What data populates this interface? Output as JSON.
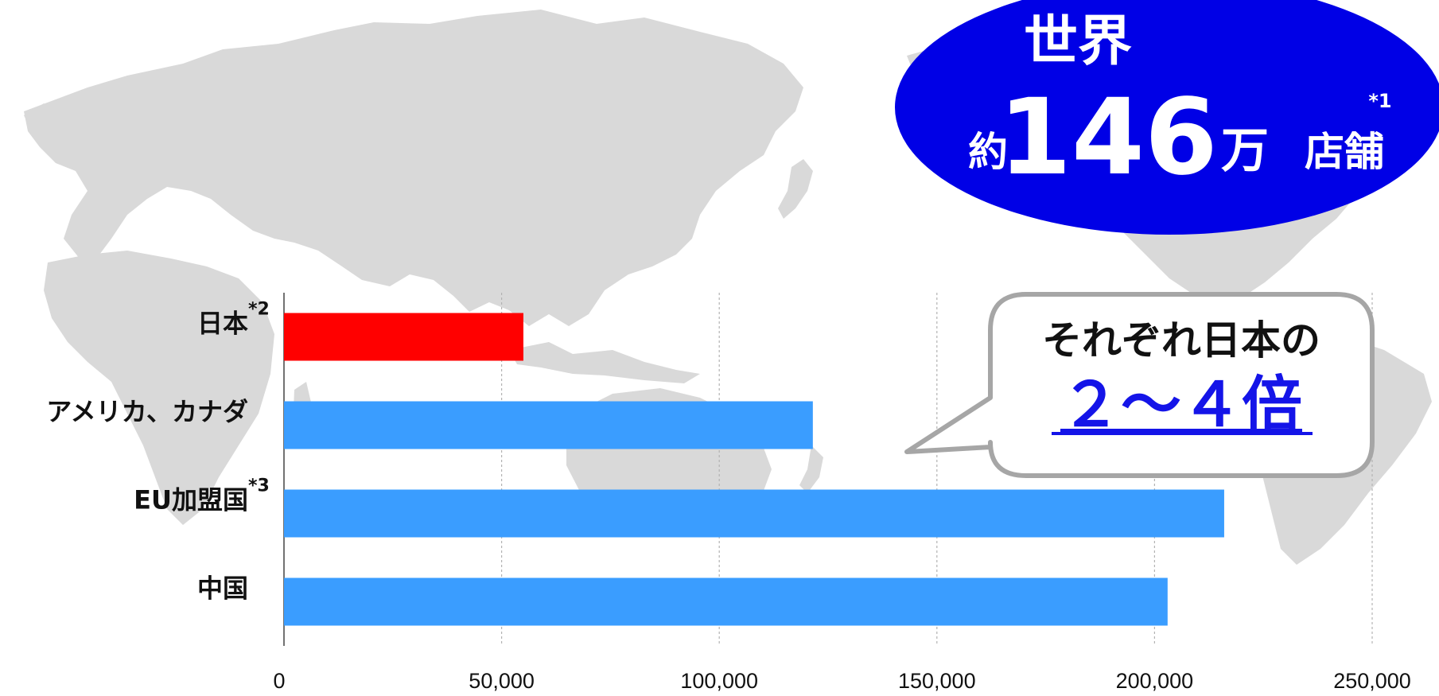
{
  "badge": {
    "line1": "世界",
    "prefix": "約",
    "number": "146",
    "unit": "万",
    "suffix": "店舗",
    "footnote": "*1",
    "bg_color": "#0000E6"
  },
  "callout": {
    "line1": "それぞれ日本の",
    "line2": "２～４倍",
    "highlight_color": "#1414E8",
    "border_color": "#A6A6A6"
  },
  "colors": {
    "highlight_bar": "#FF0000",
    "default_bar": "#3A9DFF",
    "map_land": "#D9D9D9",
    "gridline": "#B3B3B3"
  },
  "chart_data": {
    "type": "bar",
    "orientation": "horizontal",
    "categories": [
      {
        "label": "日本",
        "note": "*2"
      },
      {
        "label": "アメリカ、カナダ",
        "note": ""
      },
      {
        "label": "EU加盟国",
        "note": "*3"
      },
      {
        "label": "中国",
        "note": ""
      }
    ],
    "values": [
      55000,
      121500,
      216000,
      203000
    ],
    "highlight_index": 0,
    "xlim": [
      0,
      250000
    ],
    "xticks": [
      0,
      50000,
      100000,
      150000,
      200000,
      250000
    ],
    "xtick_labels": [
      "0",
      "50,000",
      "100,000",
      "150,000",
      "200,000",
      "250,000"
    ],
    "grid": true
  }
}
